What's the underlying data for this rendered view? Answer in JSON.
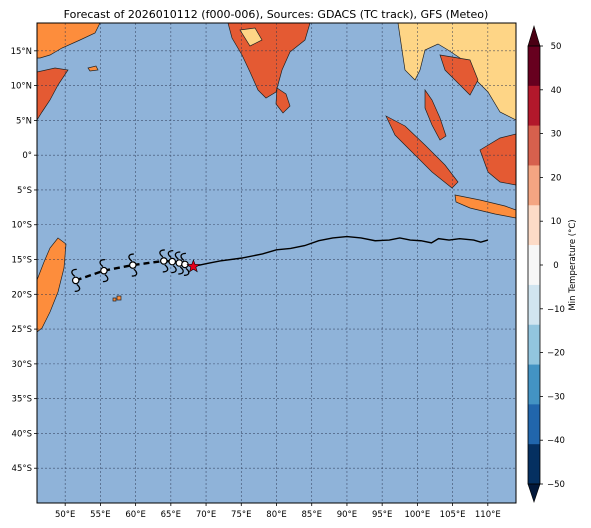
{
  "title": "Forecast of 2026010112 (f000-006), Sources: GDACS (TC track), GFS (Meteo)",
  "map": {
    "lon_range": [
      46,
      114
    ],
    "lat_range": [
      -50,
      19
    ],
    "grid": true,
    "ocean_color": "#8fb3d9",
    "land_colors": {
      "warm": "#fd8d3c",
      "hot": "#e45a33",
      "cool": "#fed586"
    },
    "x_ticks": [
      {
        "lon": 50,
        "label": "50°E"
      },
      {
        "lon": 55,
        "label": "55°E"
      },
      {
        "lon": 60,
        "label": "60°E"
      },
      {
        "lon": 65,
        "label": "65°E"
      },
      {
        "lon": 70,
        "label": "70°E"
      },
      {
        "lon": 75,
        "label": "75°E"
      },
      {
        "lon": 80,
        "label": "80°E"
      },
      {
        "lon": 85,
        "label": "85°E"
      },
      {
        "lon": 90,
        "label": "90°E"
      },
      {
        "lon": 95,
        "label": "95°E"
      },
      {
        "lon": 100,
        "label": "100°E"
      },
      {
        "lon": 105,
        "label": "105°E"
      },
      {
        "lon": 110,
        "label": "110°E"
      }
    ],
    "y_ticks": [
      {
        "lat": 15,
        "label": "15°N"
      },
      {
        "lat": 10,
        "label": "10°N"
      },
      {
        "lat": 5,
        "label": "5°N"
      },
      {
        "lat": 0,
        "label": "0°"
      },
      {
        "lat": -5,
        "label": "5°S"
      },
      {
        "lat": -10,
        "label": "10°S"
      },
      {
        "lat": -15,
        "label": "15°S"
      },
      {
        "lat": -20,
        "label": "20°S"
      },
      {
        "lat": -25,
        "label": "25°S"
      },
      {
        "lat": -30,
        "label": "30°S"
      },
      {
        "lat": -35,
        "label": "35°S"
      },
      {
        "lat": -40,
        "label": "40°S"
      },
      {
        "lat": -45,
        "label": "45°S"
      }
    ]
  },
  "track": {
    "forecast_points": [
      {
        "lon": 51.5,
        "lat": -18.0
      },
      {
        "lon": 55.5,
        "lat": -16.6
      },
      {
        "lon": 59.6,
        "lat": -15.8
      },
      {
        "lon": 64.0,
        "lat": -15.2
      },
      {
        "lon": 65.2,
        "lat": -15.3
      },
      {
        "lon": 66.2,
        "lat": -15.5
      },
      {
        "lon": 67.0,
        "lat": -15.7
      }
    ],
    "current_position": {
      "lon": 68.2,
      "lat": -16.0,
      "marker": "red-star"
    },
    "past_track": [
      [
        68.2,
        -16.0
      ],
      [
        70.0,
        -15.6
      ],
      [
        72.0,
        -15.2
      ],
      [
        75.0,
        -14.8
      ],
      [
        78.0,
        -14.2
      ],
      [
        80.0,
        -13.6
      ],
      [
        82.0,
        -13.4
      ],
      [
        84.0,
        -13.0
      ],
      [
        86.0,
        -12.3
      ],
      [
        88.0,
        -11.9
      ],
      [
        90.0,
        -11.7
      ],
      [
        92.0,
        -11.9
      ],
      [
        94.0,
        -12.3
      ],
      [
        96.0,
        -12.2
      ],
      [
        97.5,
        -11.9
      ],
      [
        99.0,
        -12.2
      ],
      [
        100.5,
        -12.3
      ],
      [
        102.0,
        -12.6
      ],
      [
        103.0,
        -12.0
      ],
      [
        104.5,
        -12.2
      ],
      [
        106.0,
        -12.0
      ],
      [
        108.0,
        -12.2
      ],
      [
        109.0,
        -12.5
      ],
      [
        110.0,
        -12.2
      ]
    ]
  },
  "colorbar": {
    "label": "Min Temperature (°C)",
    "ticks": [
      "50",
      "40",
      "30",
      "20",
      "10",
      "0",
      "−10",
      "−20",
      "−30",
      "−40",
      "−50"
    ],
    "colors": [
      "#67001f",
      "#b2182b",
      "#d6604d",
      "#f4a582",
      "#fddbc7",
      "#f7f7f7",
      "#d1e5f0",
      "#92c5de",
      "#4393c3",
      "#2166ac",
      "#053061"
    ]
  }
}
